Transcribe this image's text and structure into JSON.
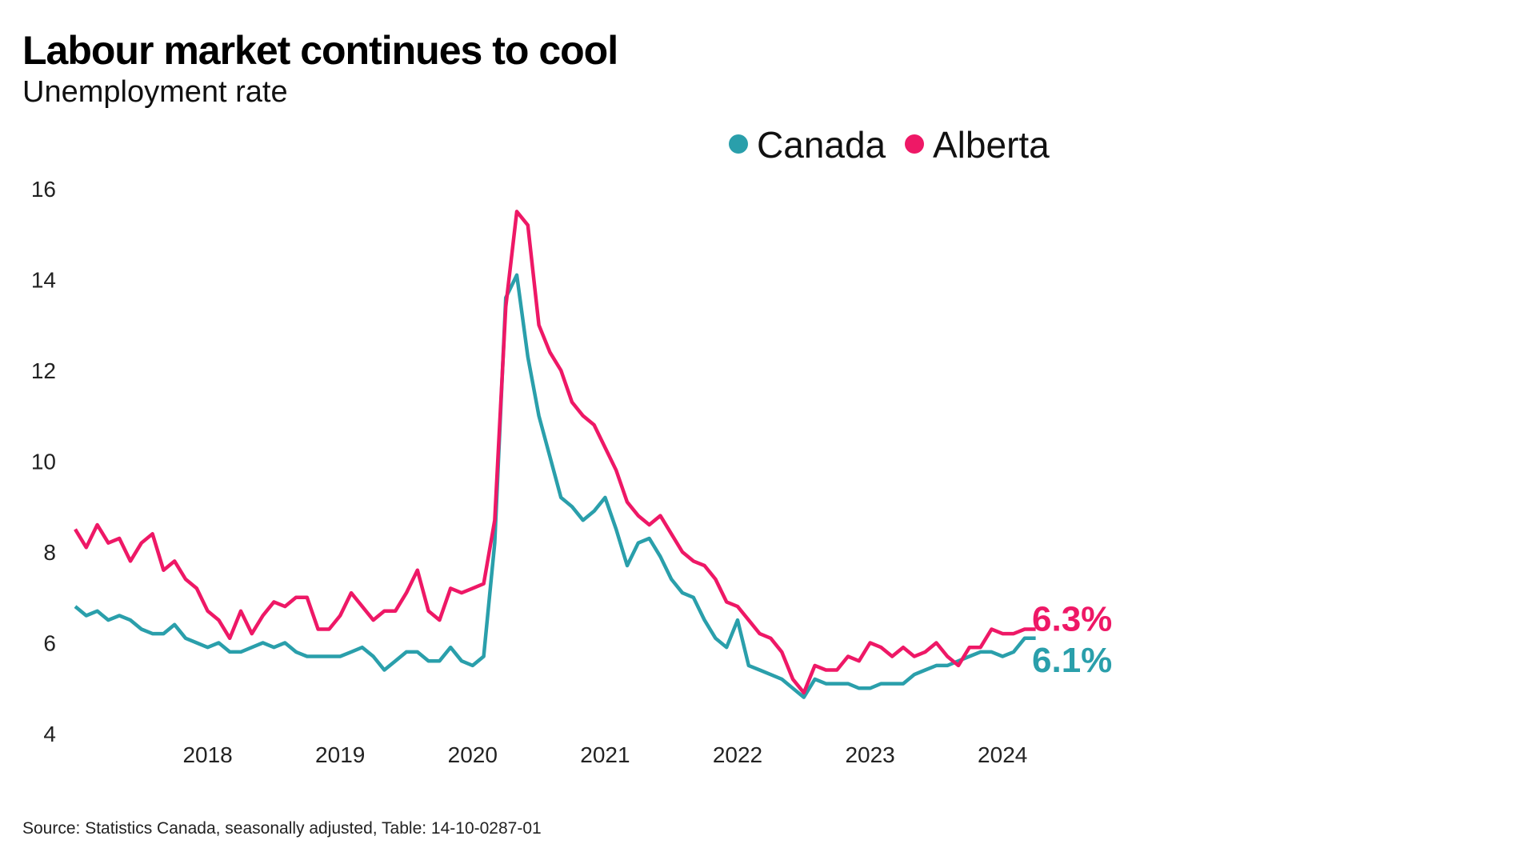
{
  "chart_data": {
    "type": "line",
    "title": "Labour market continues to cool",
    "subtitle": "Unemployment rate",
    "source": "Source: Statistics Canada, seasonally adjusted, Table: 14-10-0287-01",
    "x_start": "2017-01",
    "x_end": "2024-04",
    "x_frequency": "monthly",
    "x_tick_labels": [
      "2018",
      "2019",
      "2020",
      "2021",
      "2022",
      "2023",
      "2024"
    ],
    "y_ticks": [
      4,
      6,
      8,
      10,
      12,
      14,
      16
    ],
    "ylim": [
      4,
      16
    ],
    "grid": false,
    "legend_position": "top-center",
    "series": [
      {
        "name": "Canada",
        "color": "#2a9fab",
        "end_label": "6.1%",
        "values": [
          6.8,
          6.6,
          6.7,
          6.5,
          6.6,
          6.5,
          6.3,
          6.2,
          6.2,
          6.4,
          6.1,
          6.0,
          5.9,
          6.0,
          5.8,
          5.8,
          5.9,
          6.0,
          5.9,
          6.0,
          5.8,
          5.7,
          5.7,
          5.7,
          5.7,
          5.8,
          5.9,
          5.7,
          5.4,
          5.6,
          5.8,
          5.8,
          5.6,
          5.6,
          5.9,
          5.6,
          5.5,
          5.7,
          8.2,
          13.6,
          14.1,
          12.3,
          11.0,
          10.1,
          9.2,
          9.0,
          8.7,
          8.9,
          9.2,
          8.5,
          7.7,
          8.2,
          8.3,
          7.9,
          7.4,
          7.1,
          7.0,
          6.5,
          6.1,
          5.9,
          6.5,
          5.5,
          5.4,
          5.3,
          5.2,
          5.0,
          4.8,
          5.2,
          5.1,
          5.1,
          5.1,
          5.0,
          5.0,
          5.1,
          5.1,
          5.1,
          5.3,
          5.4,
          5.5,
          5.5,
          5.6,
          5.7,
          5.8,
          5.8,
          5.7,
          5.8,
          6.1,
          6.1
        ]
      },
      {
        "name": "Alberta",
        "color": "#ee1866",
        "end_label": "6.3%",
        "values": [
          8.5,
          8.1,
          8.6,
          8.2,
          8.3,
          7.8,
          8.2,
          8.4,
          7.6,
          7.8,
          7.4,
          7.2,
          6.7,
          6.5,
          6.1,
          6.7,
          6.2,
          6.6,
          6.9,
          6.8,
          7.0,
          7.0,
          6.3,
          6.3,
          6.6,
          7.1,
          6.8,
          6.5,
          6.7,
          6.7,
          7.1,
          7.6,
          6.7,
          6.5,
          7.2,
          7.1,
          7.2,
          7.3,
          8.7,
          13.4,
          15.5,
          15.2,
          13.0,
          12.4,
          12.0,
          11.3,
          11.0,
          10.8,
          10.3,
          9.8,
          9.1,
          8.8,
          8.6,
          8.8,
          8.4,
          8.0,
          7.8,
          7.7,
          7.4,
          6.9,
          6.8,
          6.5,
          6.2,
          6.1,
          5.8,
          5.2,
          4.9,
          5.5,
          5.4,
          5.4,
          5.7,
          5.6,
          6.0,
          5.9,
          5.7,
          5.9,
          5.7,
          5.8,
          6.0,
          5.7,
          5.5,
          5.9,
          5.9,
          6.3,
          6.2,
          6.2,
          6.3,
          6.3
        ]
      }
    ]
  }
}
